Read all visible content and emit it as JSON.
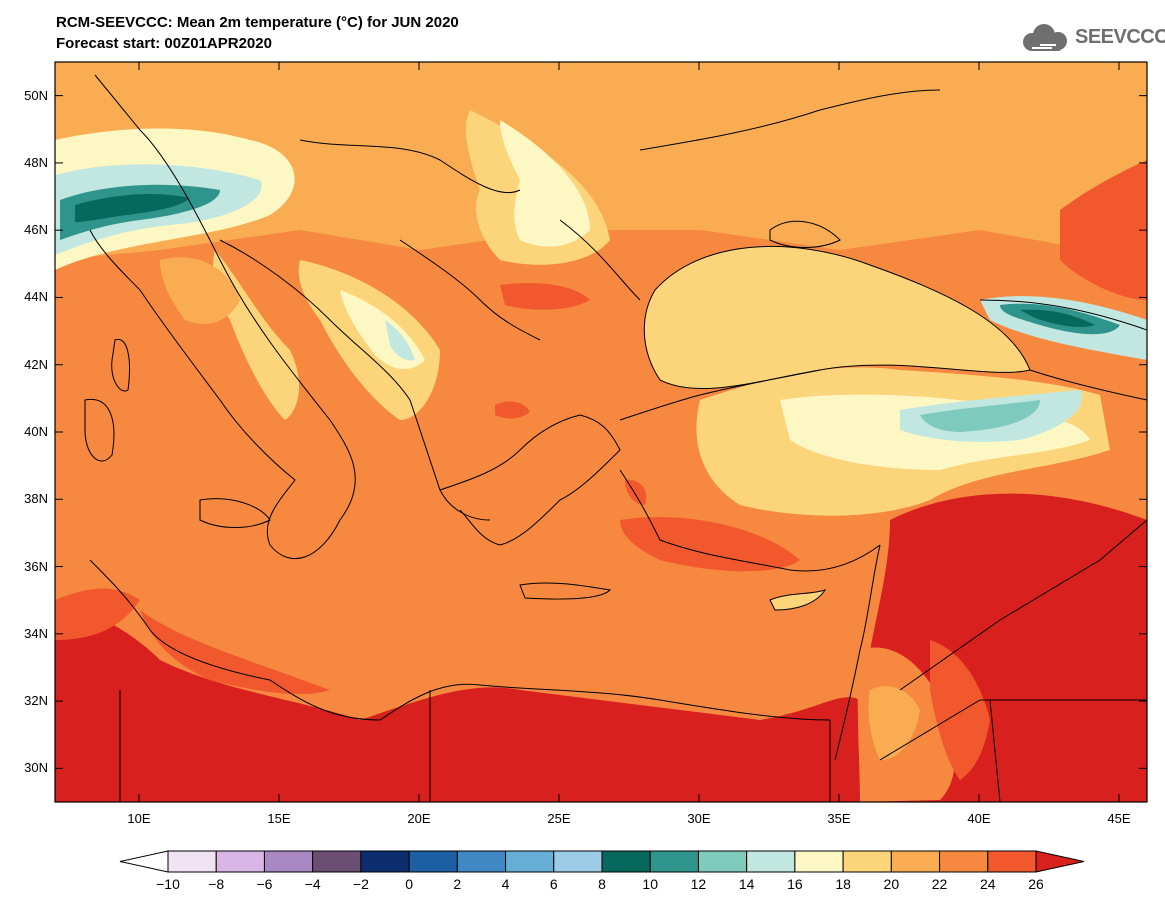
{
  "header": {
    "title_line1": "RCM-SEEVCCC: Mean 2m temperature (°C) for JUN 2020",
    "title_line2": "Forecast start: 00Z01APR2020",
    "logo_text": "SEEVCCC"
  },
  "map": {
    "projection": "lat-lon",
    "lon_range": [
      7,
      46
    ],
    "lat_range": [
      29,
      51
    ],
    "lat_ticks": [
      {
        "value": 50,
        "label": "50N"
      },
      {
        "value": 48,
        "label": "48N"
      },
      {
        "value": 46,
        "label": "46N"
      },
      {
        "value": 44,
        "label": "44N"
      },
      {
        "value": 42,
        "label": "42N"
      },
      {
        "value": 40,
        "label": "40N"
      },
      {
        "value": 38,
        "label": "38N"
      },
      {
        "value": 36,
        "label": "36N"
      },
      {
        "value": 34,
        "label": "34N"
      },
      {
        "value": 32,
        "label": "32N"
      },
      {
        "value": 30,
        "label": "30N"
      }
    ],
    "lon_ticks": [
      {
        "value": 10,
        "label": "10E"
      },
      {
        "value": 15,
        "label": "15E"
      },
      {
        "value": 20,
        "label": "20E"
      },
      {
        "value": 25,
        "label": "25E"
      },
      {
        "value": 30,
        "label": "30E"
      },
      {
        "value": 35,
        "label": "35E"
      },
      {
        "value": 40,
        "label": "40E"
      },
      {
        "value": 45,
        "label": "45E"
      }
    ]
  },
  "colorbar": {
    "labels": [
      "−10",
      "−8",
      "−6",
      "−4",
      "−2",
      "0",
      "2",
      "4",
      "6",
      "8",
      "10",
      "12",
      "14",
      "16",
      "18",
      "20",
      "22",
      "24",
      "26"
    ],
    "colors": [
      "#ffffff",
      "#f0e4f3",
      "#d9b6e6",
      "#a887c3",
      "#6d4e73",
      "#0d2d6e",
      "#1d5fa3",
      "#3f88c4",
      "#66aed6",
      "#9ccbe6",
      "#07685d",
      "#2f958c",
      "#7ecabc",
      "#c2e7e1",
      "#fdf7c4",
      "#fcd57b",
      "#f9ac52",
      "#f68840",
      "#f2582d",
      "#d8201e"
    ]
  }
}
